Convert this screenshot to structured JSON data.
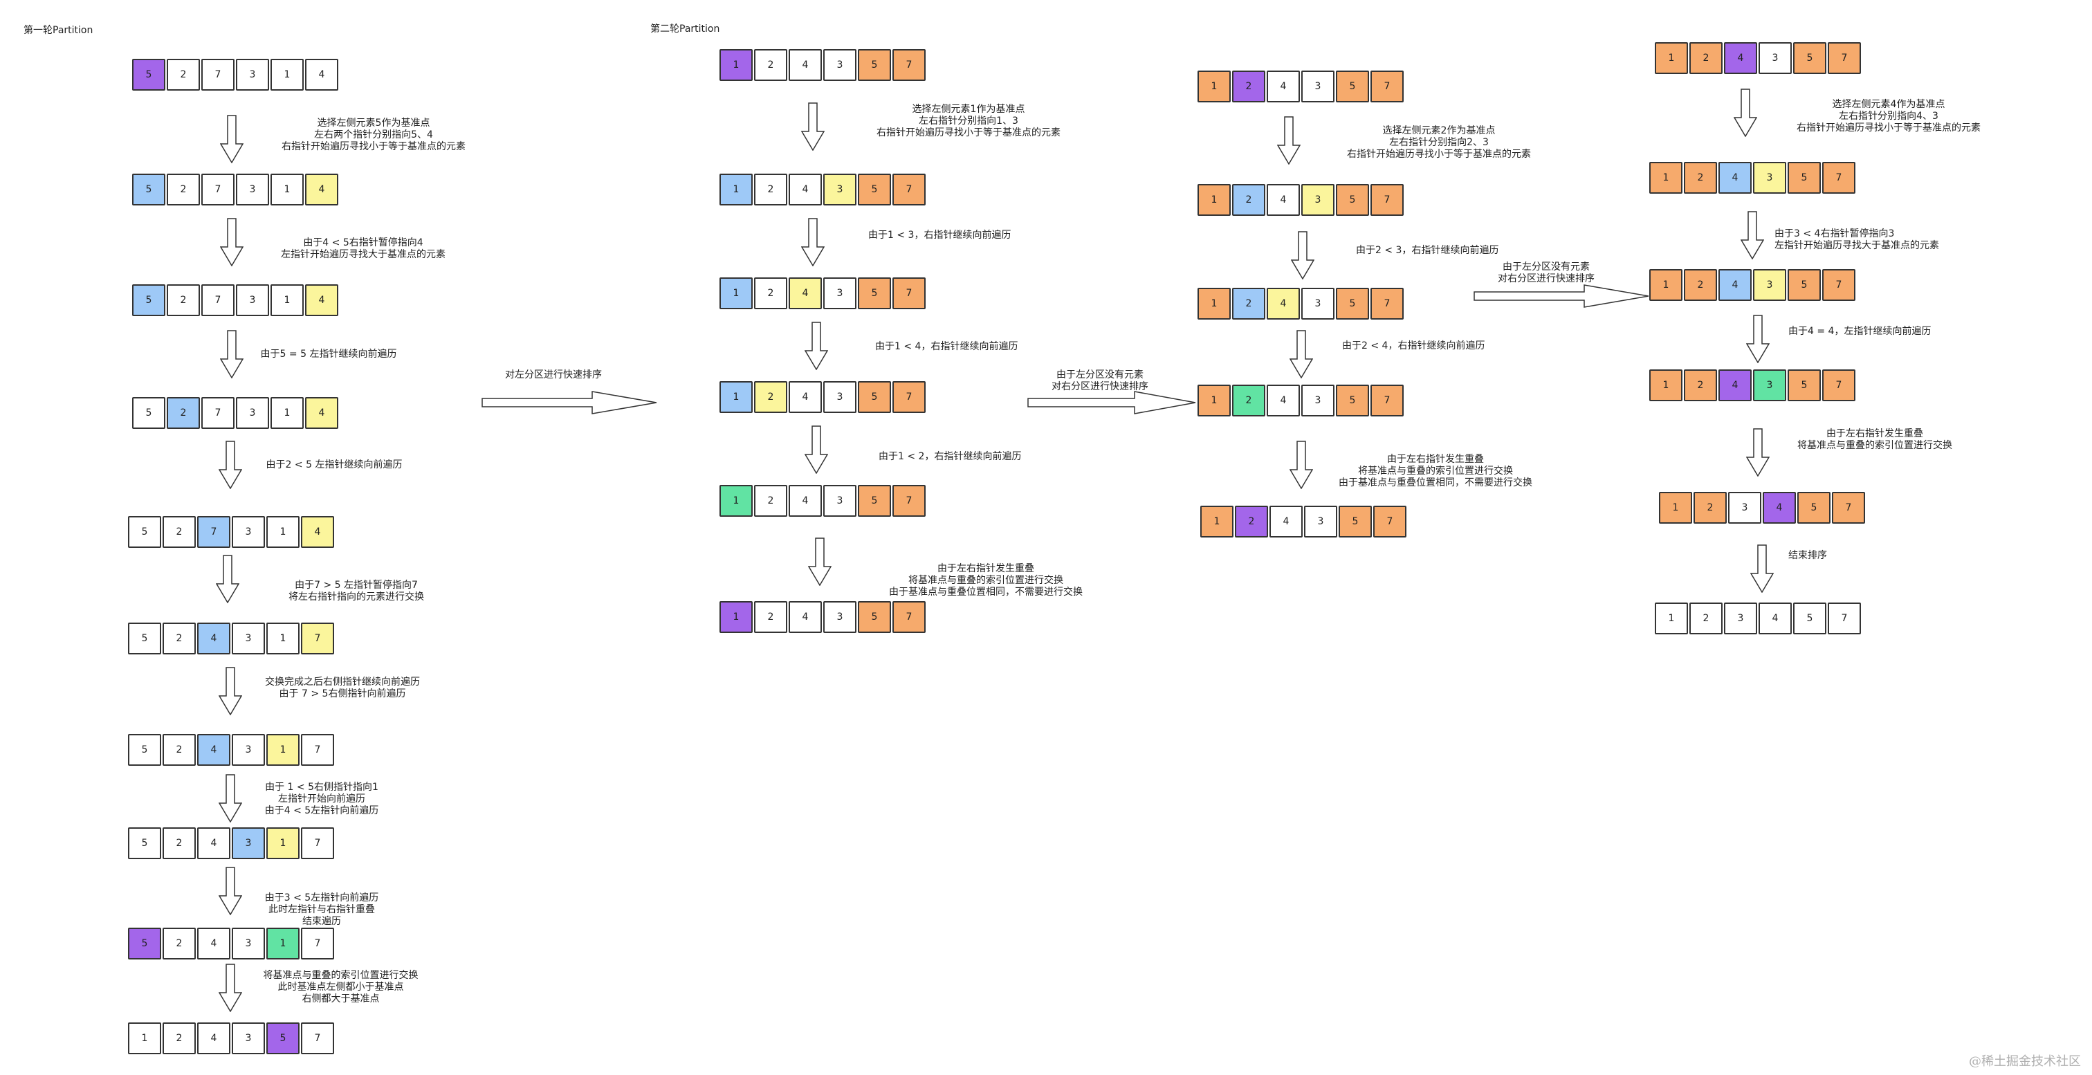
{
  "colors": {
    "white": "#ffffff",
    "pivot": "#a366ea",
    "left_pointer": "#9ec9f7",
    "right_pointer": "#fbf59c",
    "overlap": "#61e3a3",
    "sorted": "#f6aa6c"
  },
  "titles": [
    "第一轮Partition",
    "第二轮Partition"
  ],
  "arrays": [
    {
      "cells": [
        {
          "v": "5",
          "c": "pivot"
        },
        {
          "v": "2",
          "c": "white"
        },
        {
          "v": "7",
          "c": "white"
        },
        {
          "v": "3",
          "c": "white"
        },
        {
          "v": "1",
          "c": "white"
        },
        {
          "v": "4",
          "c": "white"
        }
      ]
    },
    {
      "cells": [
        {
          "v": "5",
          "c": "left_pointer"
        },
        {
          "v": "2",
          "c": "white"
        },
        {
          "v": "7",
          "c": "white"
        },
        {
          "v": "3",
          "c": "white"
        },
        {
          "v": "1",
          "c": "white"
        },
        {
          "v": "4",
          "c": "right_pointer"
        }
      ]
    },
    {
      "cells": [
        {
          "v": "5",
          "c": "left_pointer"
        },
        {
          "v": "2",
          "c": "white"
        },
        {
          "v": "7",
          "c": "white"
        },
        {
          "v": "3",
          "c": "white"
        },
        {
          "v": "1",
          "c": "white"
        },
        {
          "v": "4",
          "c": "right_pointer"
        }
      ]
    },
    {
      "cells": [
        {
          "v": "5",
          "c": "white"
        },
        {
          "v": "2",
          "c": "left_pointer"
        },
        {
          "v": "7",
          "c": "white"
        },
        {
          "v": "3",
          "c": "white"
        },
        {
          "v": "1",
          "c": "white"
        },
        {
          "v": "4",
          "c": "right_pointer"
        }
      ]
    },
    {
      "cells": [
        {
          "v": "5",
          "c": "white"
        },
        {
          "v": "2",
          "c": "white"
        },
        {
          "v": "7",
          "c": "left_pointer"
        },
        {
          "v": "3",
          "c": "white"
        },
        {
          "v": "1",
          "c": "white"
        },
        {
          "v": "4",
          "c": "right_pointer"
        }
      ]
    },
    {
      "cells": [
        {
          "v": "5",
          "c": "white"
        },
        {
          "v": "2",
          "c": "white"
        },
        {
          "v": "4",
          "c": "left_pointer"
        },
        {
          "v": "3",
          "c": "white"
        },
        {
          "v": "1",
          "c": "white"
        },
        {
          "v": "7",
          "c": "right_pointer"
        }
      ]
    },
    {
      "cells": [
        {
          "v": "5",
          "c": "white"
        },
        {
          "v": "2",
          "c": "white"
        },
        {
          "v": "4",
          "c": "left_pointer"
        },
        {
          "v": "3",
          "c": "white"
        },
        {
          "v": "1",
          "c": "right_pointer"
        },
        {
          "v": "7",
          "c": "white"
        }
      ]
    },
    {
      "cells": [
        {
          "v": "5",
          "c": "white"
        },
        {
          "v": "2",
          "c": "white"
        },
        {
          "v": "4",
          "c": "white"
        },
        {
          "v": "3",
          "c": "left_pointer"
        },
        {
          "v": "1",
          "c": "right_pointer"
        },
        {
          "v": "7",
          "c": "white"
        }
      ]
    },
    {
      "cells": [
        {
          "v": "5",
          "c": "pivot"
        },
        {
          "v": "2",
          "c": "white"
        },
        {
          "v": "4",
          "c": "white"
        },
        {
          "v": "3",
          "c": "white"
        },
        {
          "v": "1",
          "c": "overlap"
        },
        {
          "v": "7",
          "c": "white"
        }
      ]
    },
    {
      "cells": [
        {
          "v": "1",
          "c": "white"
        },
        {
          "v": "2",
          "c": "white"
        },
        {
          "v": "4",
          "c": "white"
        },
        {
          "v": "3",
          "c": "white"
        },
        {
          "v": "5",
          "c": "pivot"
        },
        {
          "v": "7",
          "c": "white"
        }
      ]
    },
    {
      "cells": [
        {
          "v": "1",
          "c": "pivot"
        },
        {
          "v": "2",
          "c": "white"
        },
        {
          "v": "4",
          "c": "white"
        },
        {
          "v": "3",
          "c": "white"
        },
        {
          "v": "5",
          "c": "sorted"
        },
        {
          "v": "7",
          "c": "sorted"
        }
      ]
    },
    {
      "cells": [
        {
          "v": "1",
          "c": "left_pointer"
        },
        {
          "v": "2",
          "c": "white"
        },
        {
          "v": "4",
          "c": "white"
        },
        {
          "v": "3",
          "c": "right_pointer"
        },
        {
          "v": "5",
          "c": "sorted"
        },
        {
          "v": "7",
          "c": "sorted"
        }
      ]
    },
    {
      "cells": [
        {
          "v": "1",
          "c": "left_pointer"
        },
        {
          "v": "2",
          "c": "white"
        },
        {
          "v": "4",
          "c": "right_pointer"
        },
        {
          "v": "3",
          "c": "white"
        },
        {
          "v": "5",
          "c": "sorted"
        },
        {
          "v": "7",
          "c": "sorted"
        }
      ]
    },
    {
      "cells": [
        {
          "v": "1",
          "c": "left_pointer"
        },
        {
          "v": "2",
          "c": "right_pointer"
        },
        {
          "v": "4",
          "c": "white"
        },
        {
          "v": "3",
          "c": "white"
        },
        {
          "v": "5",
          "c": "sorted"
        },
        {
          "v": "7",
          "c": "sorted"
        }
      ]
    },
    {
      "cells": [
        {
          "v": "1",
          "c": "overlap"
        },
        {
          "v": "2",
          "c": "white"
        },
        {
          "v": "4",
          "c": "white"
        },
        {
          "v": "3",
          "c": "white"
        },
        {
          "v": "5",
          "c": "sorted"
        },
        {
          "v": "7",
          "c": "sorted"
        }
      ]
    },
    {
      "cells": [
        {
          "v": "1",
          "c": "pivot"
        },
        {
          "v": "2",
          "c": "white"
        },
        {
          "v": "4",
          "c": "white"
        },
        {
          "v": "3",
          "c": "white"
        },
        {
          "v": "5",
          "c": "sorted"
        },
        {
          "v": "7",
          "c": "sorted"
        }
      ]
    },
    {
      "cells": [
        {
          "v": "1",
          "c": "sorted"
        },
        {
          "v": "2",
          "c": "pivot"
        },
        {
          "v": "4",
          "c": "white"
        },
        {
          "v": "3",
          "c": "white"
        },
        {
          "v": "5",
          "c": "sorted"
        },
        {
          "v": "7",
          "c": "sorted"
        }
      ]
    },
    {
      "cells": [
        {
          "v": "1",
          "c": "sorted"
        },
        {
          "v": "2",
          "c": "left_pointer"
        },
        {
          "v": "4",
          "c": "white"
        },
        {
          "v": "3",
          "c": "right_pointer"
        },
        {
          "v": "5",
          "c": "sorted"
        },
        {
          "v": "7",
          "c": "sorted"
        }
      ]
    },
    {
      "cells": [
        {
          "v": "1",
          "c": "sorted"
        },
        {
          "v": "2",
          "c": "left_pointer"
        },
        {
          "v": "4",
          "c": "right_pointer"
        },
        {
          "v": "3",
          "c": "white"
        },
        {
          "v": "5",
          "c": "sorted"
        },
        {
          "v": "7",
          "c": "sorted"
        }
      ]
    },
    {
      "cells": [
        {
          "v": "1",
          "c": "sorted"
        },
        {
          "v": "2",
          "c": "overlap"
        },
        {
          "v": "4",
          "c": "white"
        },
        {
          "v": "3",
          "c": "white"
        },
        {
          "v": "5",
          "c": "sorted"
        },
        {
          "v": "7",
          "c": "sorted"
        }
      ]
    },
    {
      "cells": [
        {
          "v": "1",
          "c": "sorted"
        },
        {
          "v": "2",
          "c": "pivot"
        },
        {
          "v": "4",
          "c": "white"
        },
        {
          "v": "3",
          "c": "white"
        },
        {
          "v": "5",
          "c": "sorted"
        },
        {
          "v": "7",
          "c": "sorted"
        }
      ]
    },
    {
      "cells": [
        {
          "v": "1",
          "c": "sorted"
        },
        {
          "v": "2",
          "c": "sorted"
        },
        {
          "v": "4",
          "c": "pivot"
        },
        {
          "v": "3",
          "c": "white"
        },
        {
          "v": "5",
          "c": "sorted"
        },
        {
          "v": "7",
          "c": "sorted"
        }
      ]
    },
    {
      "cells": [
        {
          "v": "1",
          "c": "sorted"
        },
        {
          "v": "2",
          "c": "sorted"
        },
        {
          "v": "4",
          "c": "left_pointer"
        },
        {
          "v": "3",
          "c": "right_pointer"
        },
        {
          "v": "5",
          "c": "sorted"
        },
        {
          "v": "7",
          "c": "sorted"
        }
      ]
    },
    {
      "cells": [
        {
          "v": "1",
          "c": "sorted"
        },
        {
          "v": "2",
          "c": "sorted"
        },
        {
          "v": "4",
          "c": "left_pointer"
        },
        {
          "v": "3",
          "c": "right_pointer"
        },
        {
          "v": "5",
          "c": "sorted"
        },
        {
          "v": "7",
          "c": "sorted"
        }
      ]
    },
    {
      "cells": [
        {
          "v": "1",
          "c": "sorted"
        },
        {
          "v": "2",
          "c": "sorted"
        },
        {
          "v": "4",
          "c": "pivot"
        },
        {
          "v": "3",
          "c": "overlap"
        },
        {
          "v": "5",
          "c": "sorted"
        },
        {
          "v": "7",
          "c": "sorted"
        }
      ]
    },
    {
      "cells": [
        {
          "v": "1",
          "c": "sorted"
        },
        {
          "v": "2",
          "c": "sorted"
        },
        {
          "v": "3",
          "c": "white"
        },
        {
          "v": "4",
          "c": "pivot"
        },
        {
          "v": "5",
          "c": "sorted"
        },
        {
          "v": "7",
          "c": "sorted"
        }
      ]
    },
    {
      "cells": [
        {
          "v": "1",
          "c": "white"
        },
        {
          "v": "2",
          "c": "white"
        },
        {
          "v": "3",
          "c": "white"
        },
        {
          "v": "4",
          "c": "white"
        },
        {
          "v": "5",
          "c": "white"
        },
        {
          "v": "7",
          "c": "white"
        }
      ]
    }
  ],
  "notes": [
    "选择左侧元素5作为基准点\n左右两个指针分别指向5、4\n右指针开始遍历寻找小于等于基准点的元素",
    "由于4 < 5右指针暂停指向4\n左指针开始遍历寻找大于基准点的元素",
    "由于5 = 5 左指针继续向前遍历",
    "由于2 < 5 左指针继续向前遍历",
    "由于7 > 5 左指针暂停指向7\n将左右指针指向的元素进行交换",
    "交换完成之后右侧指针继续向前遍历\n由于 7 > 5右侧指针向前遍历",
    "由于 1 < 5右侧指针指向1\n左指针开始向前遍历\n由于4 < 5左指针向前遍历",
    "由于3 < 5左指针向前遍历\n此时左指针与右指针重叠\n结束遍历",
    "将基准点与重叠的索引位置进行交换\n此时基准点左侧都小于基准点\n右侧都大于基准点",
    "选择左侧元素1作为基准点\n左右指针分别指向1、3\n右指针开始遍历寻找小于等于基准点的元素",
    "由于1 < 3，右指针继续向前遍历",
    "由于1 < 4，右指针继续向前遍历",
    "由于1 < 2，右指针继续向前遍历",
    "由于左右指针发生重叠\n将基准点与重叠的索引位置进行交换\n由于基准点与重叠位置相同，不需要进行交换",
    "选择左侧元素2作为基准点\n左右指针分别指向2、3\n右指针开始遍历寻找小于等于基准点的元素",
    "由于2 < 3，右指针继续向前遍历",
    "由于2 < 4，右指针继续向前遍历",
    "由于左右指针发生重叠\n将基准点与重叠的索引位置进行交换\n由于基准点与重叠位置相同，不需要进行交换",
    "选择左侧元素4作为基准点\n左右指针分别指向4、3\n右指针开始遍历寻找小于等于基准点的元素",
    "由于3 < 4右指针暂停指向3\n左指针开始遍历寻找大于基准点的元素",
    "由于4 = 4，左指针继续向前遍历",
    "由于左右指针发生重叠\n将基准点与重叠的索引位置进行交换",
    "结束排序"
  ],
  "transitions": [
    "对左分区进行快速排序",
    "由于左分区没有元素\n对右分区进行快速排序",
    "由于左分区没有元素\n对右分区进行快速排序"
  ],
  "watermark": "@稀土掘金技术社区"
}
